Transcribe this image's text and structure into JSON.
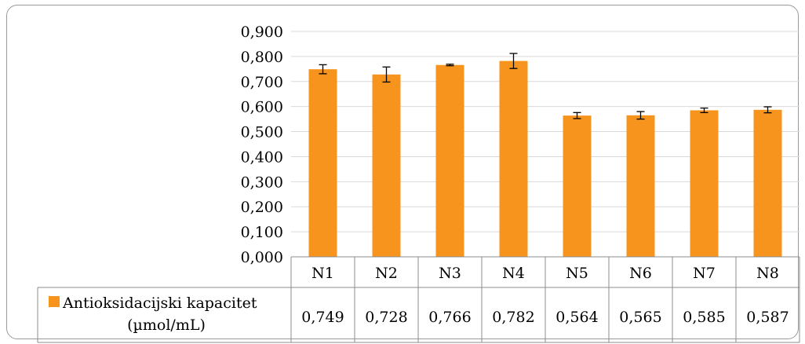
{
  "chart_data": {
    "type": "bar",
    "categories": [
      "N1",
      "N2",
      "N3",
      "N4",
      "N5",
      "N6",
      "N7",
      "N8"
    ],
    "series": [
      {
        "name": "Antioksidacijski kapacitet (µmol/mL)",
        "name_lines": [
          "Antioksidacijski kapacitet",
          "(µmol/mL)"
        ],
        "values": [
          0.749,
          0.728,
          0.766,
          0.782,
          0.564,
          0.565,
          0.585,
          0.587
        ],
        "value_labels": [
          "0,749",
          "0,728",
          "0,766",
          "0,782",
          "0,564",
          "0,565",
          "0,585",
          "0,587"
        ],
        "error": [
          0.018,
          0.03,
          0.003,
          0.03,
          0.012,
          0.015,
          0.009,
          0.012
        ],
        "color": "#F7941D"
      }
    ],
    "ylim": [
      0,
      0.9
    ],
    "yticks": [
      "0,000",
      "0,100",
      "0,200",
      "0,300",
      "0,400",
      "0,500",
      "0,600",
      "0,700",
      "0,800",
      "0,900"
    ],
    "ytick_values": [
      0,
      0.1,
      0.2,
      0.3,
      0.4,
      0.5,
      0.6,
      0.7,
      0.8,
      0.9
    ],
    "grid": true,
    "legend": "data-table",
    "gridline_color": "#d9d9d9",
    "table_border_color": "#8c8c8c",
    "errorbar_color": "#000000"
  }
}
